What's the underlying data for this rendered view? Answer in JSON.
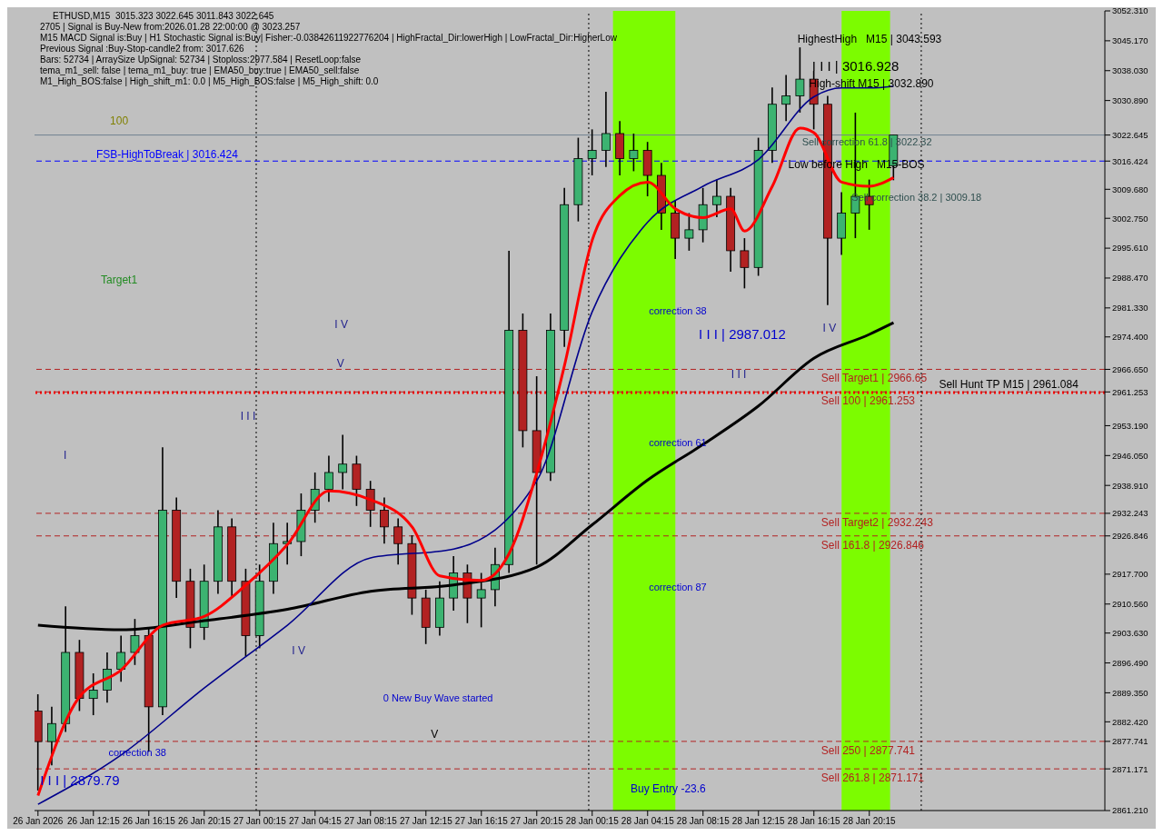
{
  "chart_data": {
    "type": "candlestick",
    "title": "ETHUSD,M15  3015.323 3022.645 3011.843 3022.645",
    "subtitle": "2705 | Signal is Buy-New from:2026.01.28 22:00:00 @ 3023.257",
    "x": [
      "2026-01-26T08:15",
      "2026-01-26T09:15",
      "2026-01-26T10:15",
      "2026-01-26T11:15",
      "2026-01-26T12:15",
      "2026-01-26T13:15",
      "2026-01-26T14:15",
      "2026-01-26T15:15",
      "2026-01-26T16:15",
      "2026-01-26T17:15",
      "2026-01-26T18:15",
      "2026-01-26T19:15",
      "2026-01-26T20:15",
      "2026-01-26T21:15",
      "2026-01-26T22:15",
      "2026-01-26T23:15",
      "2026-01-27T00:15",
      "2026-01-27T01:15",
      "2026-01-27T02:15",
      "2026-01-27T03:15",
      "2026-01-27T04:15",
      "2026-01-27T05:15",
      "2026-01-27T06:15",
      "2026-01-27T07:15",
      "2026-01-27T08:15",
      "2026-01-27T09:15",
      "2026-01-27T10:15",
      "2026-01-27T11:15",
      "2026-01-27T12:15",
      "2026-01-27T13:15",
      "2026-01-27T14:15",
      "2026-01-27T15:15",
      "2026-01-27T16:15",
      "2026-01-27T17:15",
      "2026-01-27T18:15",
      "2026-01-27T19:15",
      "2026-01-27T20:15",
      "2026-01-27T21:15",
      "2026-01-27T22:15",
      "2026-01-27T23:15",
      "2026-01-28T00:15",
      "2026-01-28T01:15",
      "2026-01-28T02:15",
      "2026-01-28T03:15",
      "2026-01-28T04:15",
      "2026-01-28T05:15",
      "2026-01-28T06:15",
      "2026-01-28T07:15",
      "2026-01-28T08:15",
      "2026-01-28T09:15",
      "2026-01-28T10:15",
      "2026-01-28T11:15",
      "2026-01-28T12:15",
      "2026-01-28T13:15",
      "2026-01-28T14:15",
      "2026-01-28T15:15",
      "2026-01-28T16:15",
      "2026-01-28T17:15",
      "2026-01-28T18:15",
      "2026-01-28T19:15",
      "2026-01-28T20:15",
      "2026-01-28T22:00"
    ],
    "ohlc": [
      [
        2885,
        2889,
        2866,
        2877.7
      ],
      [
        2877.7,
        2886,
        2872,
        2882
      ],
      [
        2882,
        2910,
        2880,
        2899
      ],
      [
        2899,
        2902,
        2885,
        2888
      ],
      [
        2888,
        2894,
        2884,
        2890
      ],
      [
        2890,
        2899,
        2887,
        2895
      ],
      [
        2895,
        2903,
        2892,
        2899
      ],
      [
        2899,
        2907,
        2896,
        2903
      ],
      [
        2903,
        2905,
        2875.3,
        2886
      ],
      [
        2886,
        2948,
        2884,
        2933
      ],
      [
        2933,
        2936,
        2912,
        2916
      ],
      [
        2916,
        2919,
        2900,
        2905
      ],
      [
        2905,
        2920,
        2902,
        2916
      ],
      [
        2916,
        2933,
        2913,
        2929
      ],
      [
        2929,
        2931,
        2912,
        2916
      ],
      [
        2916,
        2919,
        2898,
        2903
      ],
      [
        2903,
        2920,
        2900,
        2916
      ],
      [
        2916,
        2930,
        2913,
        2925
      ],
      [
        2925,
        2930,
        2920,
        2925.5
      ],
      [
        2925.5,
        2937,
        2922,
        2933
      ],
      [
        2933,
        2942,
        2930,
        2938
      ],
      [
        2938,
        2946,
        2935,
        2942
      ],
      [
        2942,
        2951,
        2938,
        2944
      ],
      [
        2944,
        2946,
        2934,
        2938
      ],
      [
        2938,
        2940,
        2929,
        2933
      ],
      [
        2933,
        2936,
        2925,
        2929
      ],
      [
        2929,
        2931,
        2920,
        2925
      ],
      [
        2925,
        2927,
        2908,
        2912
      ],
      [
        2912,
        2914,
        2901,
        2905
      ],
      [
        2905,
        2916,
        2903,
        2912
      ],
      [
        2912,
        2922,
        2909,
        2918
      ],
      [
        2918,
        2920,
        2906,
        2912
      ],
      [
        2912,
        2918,
        2905,
        2914
      ],
      [
        2914,
        2924,
        2910,
        2920
      ],
      [
        2920,
        2995,
        2918,
        2976
      ],
      [
        2976,
        2980,
        2948,
        2952
      ],
      [
        2952,
        2965,
        2920,
        2942
      ],
      [
        2942,
        2980,
        2940,
        2976
      ],
      [
        2976,
        3010,
        2972,
        3006
      ],
      [
        3006,
        3022,
        3002,
        3017
      ],
      [
        3017,
        3024,
        3013,
        3019
      ],
      [
        3019,
        3033,
        3015,
        3023
      ],
      [
        3023,
        3026,
        3013,
        3017
      ],
      [
        3017,
        3023,
        3014,
        3019
      ],
      [
        3019,
        3021,
        3008,
        3013
      ],
      [
        3013,
        3016,
        3000,
        3004
      ],
      [
        3004,
        3007,
        2993,
        2998
      ],
      [
        2998,
        3004,
        2995,
        3000
      ],
      [
        3000,
        3010,
        2997,
        3006
      ],
      [
        3006,
        3012,
        3003,
        3008
      ],
      [
        3008,
        3010,
        2990,
        2995
      ],
      [
        2995,
        2998,
        2986,
        2991
      ],
      [
        2991,
        3022,
        2989,
        3019
      ],
      [
        3019,
        3034,
        3016,
        3030
      ],
      [
        3030,
        3037,
        3026,
        3032
      ],
      [
        3032,
        3043.593,
        3028,
        3036
      ],
      [
        3036,
        3038,
        3024,
        3030
      ],
      [
        3030,
        3032,
        2982,
        2998
      ],
      [
        2998,
        3009,
        2994,
        3004
      ],
      [
        3004,
        3028,
        2998,
        3008
      ],
      [
        3008,
        3012,
        3000,
        3006
      ],
      [
        3015.323,
        3022.645,
        3011.843,
        3022.645
      ]
    ],
    "series": [
      {
        "type": "line",
        "color": "#000000",
        "x": [
          "2026-01-26T08:15",
          "2026-01-26T14:15",
          "2026-01-26T20:15",
          "2026-01-27T02:15",
          "2026-01-27T08:15",
          "2026-01-27T14:15",
          "2026-01-27T20:15",
          "2026-01-28T00:15",
          "2026-01-28T04:15",
          "2026-01-28T08:15",
          "2026-01-28T12:15",
          "2026-01-28T16:15",
          "2026-01-28T20:15",
          "2026-01-28T22:00"
        ],
        "values": [
          2905.5,
          2904.4,
          2906.6,
          2909.3,
          2913.6,
          2915.1,
          2919.4,
          2929.5,
          2940.2,
          2948.7,
          2957.9,
          2969.3,
          2975.0,
          2977.8
        ]
      },
      {
        "type": "line",
        "color": "#00008b",
        "x": [
          "2026-01-26T08:15",
          "2026-01-26T14:15",
          "2026-01-26T20:15",
          "2026-01-27T02:15",
          "2026-01-27T08:15",
          "2026-01-27T14:15",
          "2026-01-27T20:15",
          "2026-01-28T00:15",
          "2026-01-28T04:15",
          "2026-01-28T08:15",
          "2026-01-28T12:15",
          "2026-01-28T16:15",
          "2026-01-28T18:15",
          "2026-01-28T20:15",
          "2026-01-28T22:00"
        ],
        "values": [
          2862.7,
          2874.5,
          2890.5,
          2905.5,
          2921.6,
          2923.7,
          2940.0,
          2980.4,
          3001.8,
          3010.4,
          3016.8,
          3031.8,
          3033.9,
          3033.9,
          3034.3
        ]
      },
      {
        "type": "line",
        "color": "#ff0000",
        "x": [
          "2026-01-26T08:15",
          "2026-01-26T11:15",
          "2026-01-26T14:15",
          "2026-01-26T17:15",
          "2026-01-26T20:15",
          "2026-01-26T23:15",
          "2026-01-27T02:15",
          "2026-01-27T05:15",
          "2026-01-27T08:15",
          "2026-01-27T11:15",
          "2026-01-27T13:15",
          "2026-01-27T16:15",
          "2026-01-27T18:15",
          "2026-01-27T20:15",
          "2026-01-27T22:15",
          "2026-01-28T00:15",
          "2026-01-28T02:15",
          "2026-01-28T04:15",
          "2026-01-28T06:15",
          "2026-01-28T08:15",
          "2026-01-28T10:15",
          "2026-01-28T11:15",
          "2026-01-28T13:15",
          "2026-01-28T15:15",
          "2026-01-28T16:15",
          "2026-01-28T18:15",
          "2026-01-28T20:15",
          "2026-01-28T22:00"
        ],
        "values": [
          2864.8,
          2888.4,
          2894.8,
          2905.5,
          2907.6,
          2915.1,
          2924.8,
          2937.6,
          2935.5,
          2929.0,
          2917.3,
          2916.2,
          2922.6,
          2941.9,
          2967.6,
          2997.5,
          3008.2,
          3011.4,
          3005.0,
          3002.9,
          3005.0,
          2999.7,
          3010.4,
          3024.3,
          3023.2,
          3011.4,
          3010.4,
          3012.5
        ]
      }
    ],
    "xlim": [
      "2026-01-26T08:00",
      "2026-01-29T13:15"
    ],
    "xticks": [
      {
        "value": "2026-01-26T08:15",
        "label": "26 Jan 2026"
      },
      {
        "value": "2026-01-26T12:15",
        "label": "26 Jan 12:15"
      },
      {
        "value": "2026-01-26T16:15",
        "label": "26 Jan 16:15"
      },
      {
        "value": "2026-01-26T20:15",
        "label": "26 Jan 20:15"
      },
      {
        "value": "2026-01-27T00:15",
        "label": "27 Jan 00:15"
      },
      {
        "value": "2026-01-27T04:15",
        "label": "27 Jan 04:15"
      },
      {
        "value": "2026-01-27T08:15",
        "label": "27 Jan 08:15"
      },
      {
        "value": "2026-01-27T12:15",
        "label": "27 Jan 12:15"
      },
      {
        "value": "2026-01-27T16:15",
        "label": "27 Jan 16:15"
      },
      {
        "value": "2026-01-27T20:15",
        "label": "27 Jan 20:15"
      },
      {
        "value": "2026-01-28T00:15",
        "label": "28 Jan 00:15"
      },
      {
        "value": "2026-01-28T04:15",
        "label": "28 Jan 04:15"
      },
      {
        "value": "2026-01-28T08:15",
        "label": "28 Jan 08:15"
      },
      {
        "value": "2026-01-28T12:15",
        "label": "28 Jan 12:15"
      },
      {
        "value": "2026-01-28T16:15",
        "label": "28 Jan 16:15"
      },
      {
        "value": "2026-01-28T20:15",
        "label": "28 Jan 20:15"
      }
    ],
    "ylim": [
      2861.21,
      3052.31
    ],
    "yticks": [
      {
        "value": 3052.31,
        "label": "3052.310"
      },
      {
        "value": 3045.17,
        "label": "3045.170"
      },
      {
        "value": 3038.03,
        "label": "3038.030"
      },
      {
        "value": 3030.89,
        "label": "3030.890"
      },
      {
        "value": 3022.645,
        "label": "3022.645"
      },
      {
        "value": 3016.424,
        "label": "3016.424"
      },
      {
        "value": 3009.68,
        "label": "3009.680"
      },
      {
        "value": 3002.75,
        "label": "3002.750"
      },
      {
        "value": 2995.61,
        "label": "2995.610"
      },
      {
        "value": 2988.47,
        "label": "2988.470"
      },
      {
        "value": 2981.33,
        "label": "2981.330"
      },
      {
        "value": 2974.4,
        "label": "2974.400"
      },
      {
        "value": 2966.65,
        "label": "2966.650"
      },
      {
        "value": 2961.253,
        "label": "2961.253"
      },
      {
        "value": 2953.19,
        "label": "2953.190"
      },
      {
        "value": 2946.05,
        "label": "2946.050"
      },
      {
        "value": 2938.91,
        "label": "2938.910"
      },
      {
        "value": 2932.243,
        "label": "2932.243"
      },
      {
        "value": 2926.846,
        "label": "2926.846"
      },
      {
        "value": 2917.7,
        "label": "2917.700"
      },
      {
        "value": 2910.56,
        "label": "2910.560"
      },
      {
        "value": 2903.63,
        "label": "2903.630"
      },
      {
        "value": 2896.49,
        "label": "2896.490"
      },
      {
        "value": 2889.35,
        "label": "2889.350"
      },
      {
        "value": 2882.42,
        "label": "2882.420"
      },
      {
        "value": 2877.741,
        "label": "2877.741"
      },
      {
        "value": 2871.171,
        "label": "2871.171"
      },
      {
        "value": 2861.21,
        "label": "2861.210"
      }
    ],
    "bands": [
      {
        "axis": "x",
        "from": "2026-01-28T01:45",
        "to": "2026-01-28T06:15",
        "color": "#7cfc00"
      },
      {
        "axis": "x",
        "from": "2026-01-28T18:15",
        "to": "2026-01-28T21:45",
        "color": "#7cfc00"
      }
    ],
    "ref_lines": [
      {
        "axis": "y",
        "value": 3016.424,
        "label": "FSB-HighToBreak | 3016.424",
        "color": "#0000ff",
        "line_style": "dashed"
      },
      {
        "axis": "y",
        "value": 3022.645,
        "color": "#708090",
        "line_style": "solid"
      },
      {
        "axis": "y",
        "value": 2966.65,
        "label": "Sell Target1 | 2966.65",
        "color": "#b22222",
        "line_style": "dashed"
      },
      {
        "axis": "y",
        "value": 2961.084,
        "label": "Sell Hunt TP M15 | 2961.084",
        "color": "#ff0000",
        "line_style": "dotted"
      },
      {
        "axis": "y",
        "value": 2961.253,
        "label": "Sell 100 | 2961.253",
        "color": "#b22222",
        "line_style": "dashed"
      },
      {
        "axis": "y",
        "value": 2932.243,
        "label": "Sell Target2 | 2932.243",
        "color": "#b22222",
        "line_style": "dashed"
      },
      {
        "axis": "y",
        "value": 2926.846,
        "label": "Sell 161.8 | 2926.846",
        "color": "#b22222",
        "line_style": "dashed"
      },
      {
        "axis": "y",
        "value": 2877.741,
        "label": "Sell  250 | 2877.741",
        "color": "#b22222",
        "line_style": "dashed"
      },
      {
        "axis": "y",
        "value": 2871.171,
        "label": "Sell 261.8 | 2871.171",
        "color": "#b22222",
        "line_style": "dashed"
      },
      {
        "axis": "x",
        "value": "2026-01-27T00:00",
        "color": "#000000",
        "line_style": "dotted"
      },
      {
        "axis": "x",
        "value": "2026-01-28T00:00",
        "color": "#000000",
        "line_style": "dotted"
      },
      {
        "axis": "x",
        "value": "2026-01-29T00:00",
        "color": "#000000",
        "line_style": "dotted"
      }
    ],
    "annotations": [
      "M15 MACD Signal is:Buy | H1 Stochastic Signal is:Buy| Fisher:-0.03842611922776204 | HighFractal_Dir:lowerHigh | LowFractal_Dir:HigherLow",
      "Previous Signal :Buy-Stop-candle2 from: 3017.626",
      "Bars: 52734 | ArraySize UpSignal: 52734 | Stoploss:2977.584 | ResetLoop:false",
      "tema_m1_sell: false | tema_m1_buy: true | EMA50_buy:true | EMA50_sell:false",
      "M1_High_BOS:false | High_shift_m1: 0.0 | M5_High_BOS:false | M5_High_shift: 0.0",
      "100",
      "Target1",
      "I V",
      "V",
      "I I I",
      "I",
      "I V",
      "V",
      "correction 38",
      "I I I | 2879.79",
      "0 New Buy Wave started",
      "correction 38",
      "I I I | 2987.012",
      "I I I",
      "correction 61",
      "correction 87",
      "Buy Entry -23.6",
      "HighestHigh   M15 | 3043.593",
      "I I I | 3016.928",
      "High-shift M15 | 3032.890",
      "Sell correction 61.8 | 3022.32",
      "Low before High   M15-BOS",
      "Sell correction 38.2 | 3009.18",
      "I V"
    ]
  }
}
